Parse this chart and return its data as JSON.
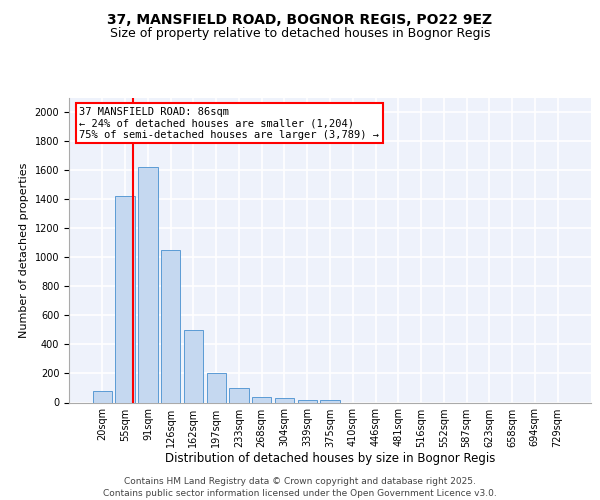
{
  "title1": "37, MANSFIELD ROAD, BOGNOR REGIS, PO22 9EZ",
  "title2": "Size of property relative to detached houses in Bognor Regis",
  "xlabel": "Distribution of detached houses by size in Bognor Regis",
  "ylabel": "Number of detached properties",
  "categories": [
    "20sqm",
    "55sqm",
    "91sqm",
    "126sqm",
    "162sqm",
    "197sqm",
    "233sqm",
    "268sqm",
    "304sqm",
    "339sqm",
    "375sqm",
    "410sqm",
    "446sqm",
    "481sqm",
    "516sqm",
    "552sqm",
    "587sqm",
    "623sqm",
    "658sqm",
    "694sqm",
    "729sqm"
  ],
  "values": [
    80,
    1420,
    1620,
    1050,
    500,
    205,
    100,
    40,
    30,
    20,
    20,
    0,
    0,
    0,
    0,
    0,
    0,
    0,
    0,
    0,
    0
  ],
  "bar_color": "#c5d8f0",
  "bar_edge_color": "#5b9bd5",
  "annotation_text": "37 MANSFIELD ROAD: 86sqm\n← 24% of detached houses are smaller (1,204)\n75% of semi-detached houses are larger (3,789) →",
  "ylim": [
    0,
    2100
  ],
  "yticks": [
    0,
    200,
    400,
    600,
    800,
    1000,
    1200,
    1400,
    1600,
    1800,
    2000
  ],
  "bg_color": "#eef2fb",
  "grid_color": "#ffffff",
  "footer1": "Contains HM Land Registry data © Crown copyright and database right 2025.",
  "footer2": "Contains public sector information licensed under the Open Government Licence v3.0.",
  "title1_fontsize": 10,
  "title2_fontsize": 9,
  "xlabel_fontsize": 8.5,
  "ylabel_fontsize": 8,
  "tick_fontsize": 7,
  "footer_fontsize": 6.5,
  "ann_fontsize": 7.5
}
